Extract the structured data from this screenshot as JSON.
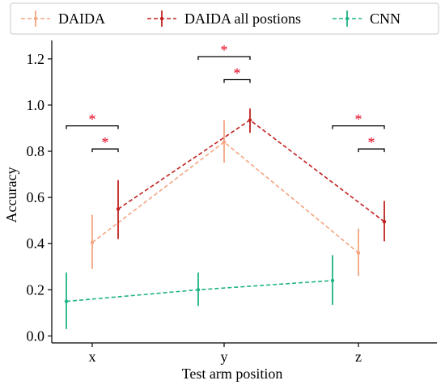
{
  "chart_data": {
    "type": "line",
    "categories": [
      "x",
      "y",
      "z"
    ],
    "xlabel": "Test arm position",
    "ylabel": "Accuracy",
    "ylim": [
      -0.03,
      1.28
    ],
    "yticks": [
      0.0,
      0.2,
      0.4,
      0.6,
      0.8,
      1.0,
      1.2
    ],
    "ytick_labels": [
      "0.0",
      "0.2",
      "0.4",
      "0.6",
      "0.8",
      "1.0",
      "1.2"
    ],
    "grid": false,
    "legend_position": "top",
    "series": [
      {
        "name": "DAIDA",
        "color": "#f4a582",
        "offset": 0,
        "values": [
          0.405,
          0.84,
          0.36
        ],
        "err_low": [
          0.29,
          0.75,
          0.26
        ],
        "err_high": [
          0.525,
          0.935,
          0.465
        ]
      },
      {
        "name": "DAIDA all postions",
        "color": "#c0211f",
        "offset": 1,
        "values": [
          0.55,
          0.935,
          0.495
        ],
        "err_low": [
          0.42,
          0.88,
          0.41
        ],
        "err_high": [
          0.675,
          0.985,
          0.585
        ]
      },
      {
        "name": "CNN",
        "color": "#1fb386",
        "offset": -1,
        "values": [
          0.15,
          0.2,
          0.24
        ],
        "err_low": [
          0.03,
          0.13,
          0.135
        ],
        "err_high": [
          0.275,
          0.275,
          0.35
        ]
      }
    ],
    "significance": [
      {
        "category": 0,
        "from_series_offset": -1,
        "to_series_offset": 1,
        "y": 0.91,
        "label": "*"
      },
      {
        "category": 0,
        "from_series_offset": 0,
        "to_series_offset": 1,
        "y": 0.81,
        "label": "*"
      },
      {
        "category": 1,
        "from_series_offset": -1,
        "to_series_offset": 1,
        "y": 1.21,
        "label": "*"
      },
      {
        "category": 1,
        "from_series_offset": 0,
        "to_series_offset": 1,
        "y": 1.11,
        "label": "*"
      },
      {
        "category": 2,
        "from_series_offset": -1,
        "to_series_offset": 1,
        "y": 0.91,
        "label": "*"
      },
      {
        "category": 2,
        "from_series_offset": 0,
        "to_series_offset": 1,
        "y": 0.81,
        "label": "*"
      }
    ]
  }
}
